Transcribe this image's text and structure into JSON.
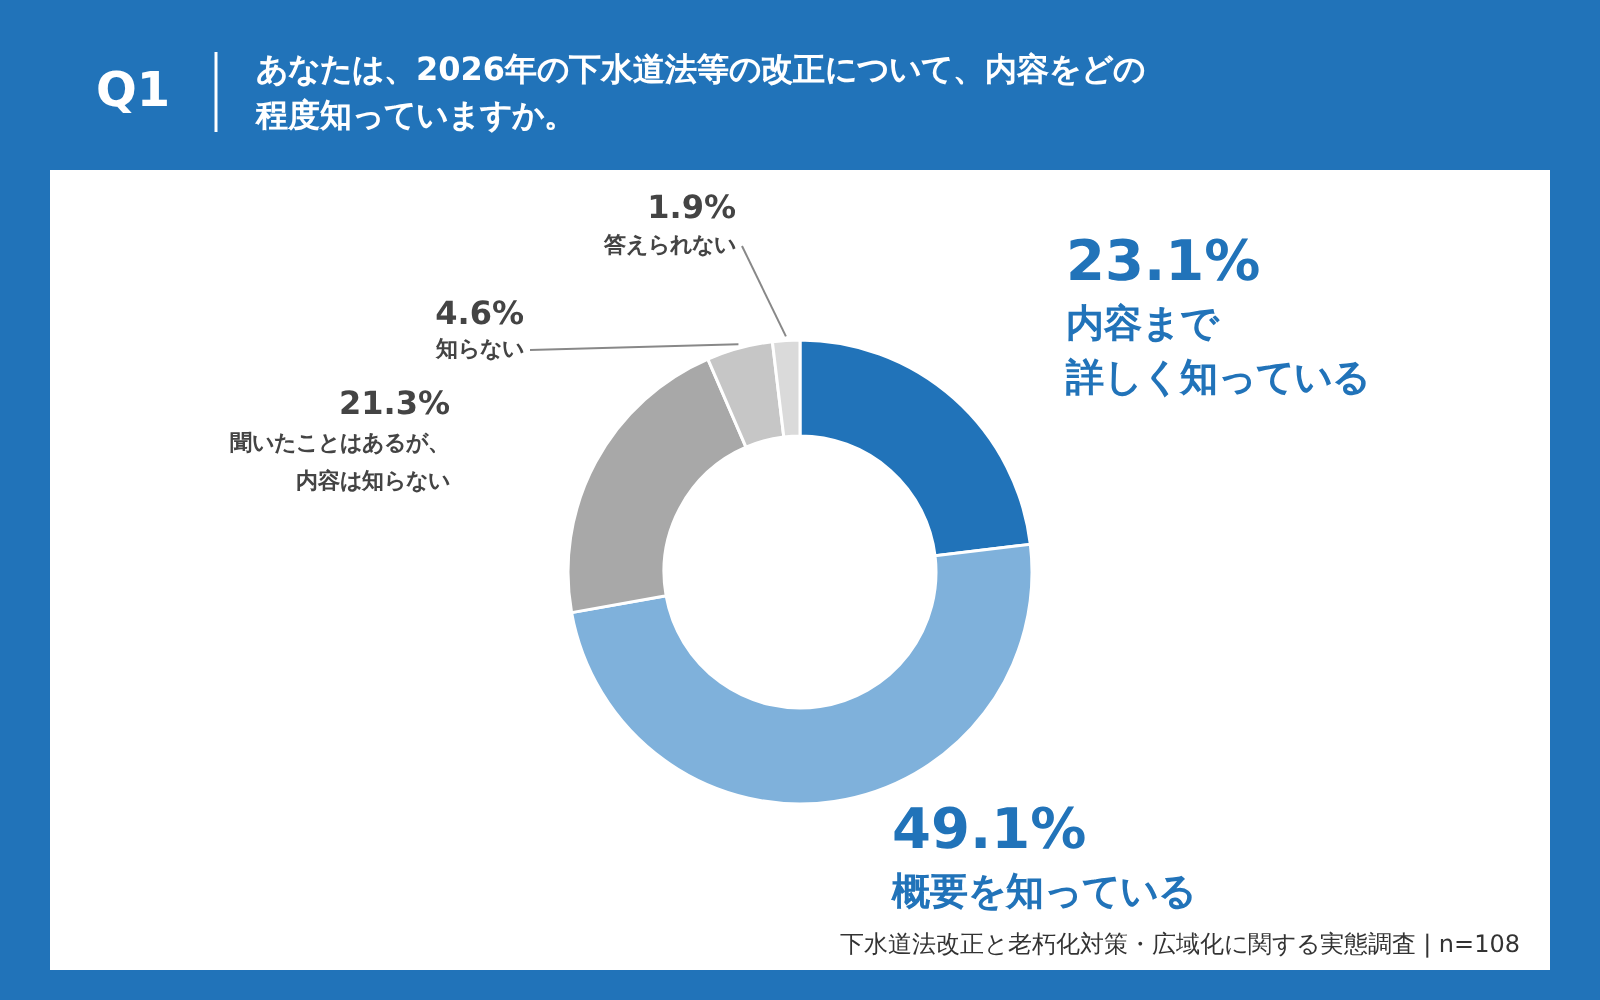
{
  "chart_data": {
    "type": "donut",
    "title": "Q1",
    "subtitle": "あなたは、2026年の下水道法等の改正について、内容をどの程度知っていますか。",
    "categories": [
      "内容まで詳しく知っている",
      "概要を知っている",
      "聞いたことはあるが、内容は知らない",
      "知らない",
      "答えられない"
    ],
    "values": [
      23.1,
      49.1,
      21.3,
      4.6,
      1.9
    ],
    "colors": [
      "#2173b9",
      "#7fb1db",
      "#a8a8a8",
      "#c6c6c6",
      "#dadada"
    ],
    "value_labels": [
      "23.1%",
      "49.1%",
      "21.3%",
      "4.6%",
      "1.9%"
    ],
    "annotations": [
      "下水道法改正と老朽化対策・広域化に関する実態調査 | n=108"
    ]
  }
}
